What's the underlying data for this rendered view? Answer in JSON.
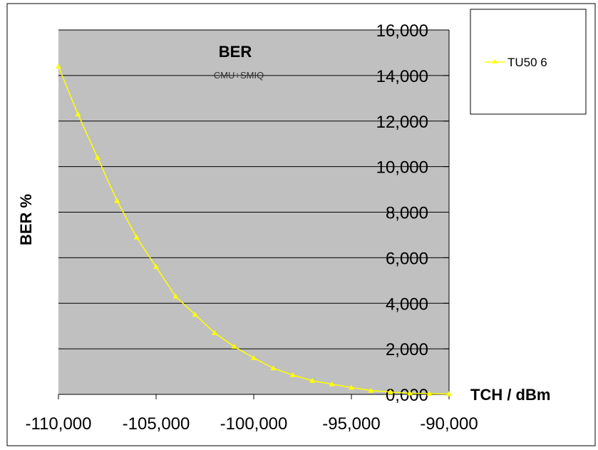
{
  "chart_data": {
    "type": "line",
    "title": "BER",
    "subtitle": "CMU+SMIQ",
    "xlabel": "TCH / dBm",
    "ylabel": "BER %",
    "xlim": [
      -110,
      -90
    ],
    "ylim": [
      0,
      16
    ],
    "x_ticks": [
      "-110,000",
      "-105,000",
      "-100,000",
      "-95,000",
      "-90,000"
    ],
    "y_ticks": [
      "0,000",
      "2,000",
      "4,000",
      "6,000",
      "8,000",
      "10,000",
      "12,000",
      "14,000",
      "16,000"
    ],
    "grid": true,
    "legend_position": "top-right",
    "series": [
      {
        "name": "TU50 6",
        "color": "#ffff00",
        "marker": "triangle",
        "x": [
          -110,
          -109,
          -108,
          -107,
          -106,
          -105,
          -104,
          -103,
          -102,
          -101,
          -100,
          -99,
          -98,
          -97,
          -96,
          -95,
          -94,
          -93,
          -92,
          -91,
          -90
        ],
        "y": [
          14.4,
          12.3,
          10.4,
          8.5,
          6.9,
          5.6,
          4.3,
          3.5,
          2.7,
          2.1,
          1.6,
          1.15,
          0.85,
          0.6,
          0.45,
          0.3,
          0.17,
          0.1,
          0.05,
          0.03,
          0.02
        ]
      }
    ]
  },
  "colors": {
    "plot_background": "#c0c0c0",
    "gridline": "#000000",
    "series_line": "#ffff00"
  }
}
